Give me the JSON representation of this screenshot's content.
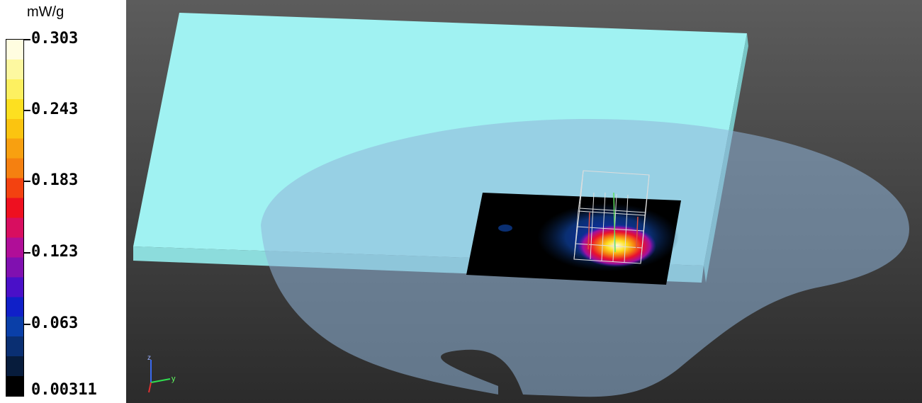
{
  "legend": {
    "unit": "mW/g",
    "labels": [
      "0.303",
      "0.243",
      "0.183",
      "0.123",
      "0.063",
      "0.00311"
    ],
    "colors": [
      "#000000",
      "#071c3c",
      "#0a2f72",
      "#0a3fa8",
      "#1020c8",
      "#4a10c8",
      "#8010b0",
      "#b00e98",
      "#d80e60",
      "#ee1020",
      "#f34210",
      "#f58010",
      "#f8a010",
      "#fbc410",
      "#fde020",
      "#fdf060",
      "#fdf8a0",
      "#fffde0"
    ]
  },
  "scene": {
    "background_top": "#5a5a5a",
    "background_bottom": "#2a2a2a",
    "phantom_color": "#8fb4d8",
    "board_color": "#a0f2f2",
    "axis_labels": {
      "z": "z",
      "y": "y"
    }
  }
}
